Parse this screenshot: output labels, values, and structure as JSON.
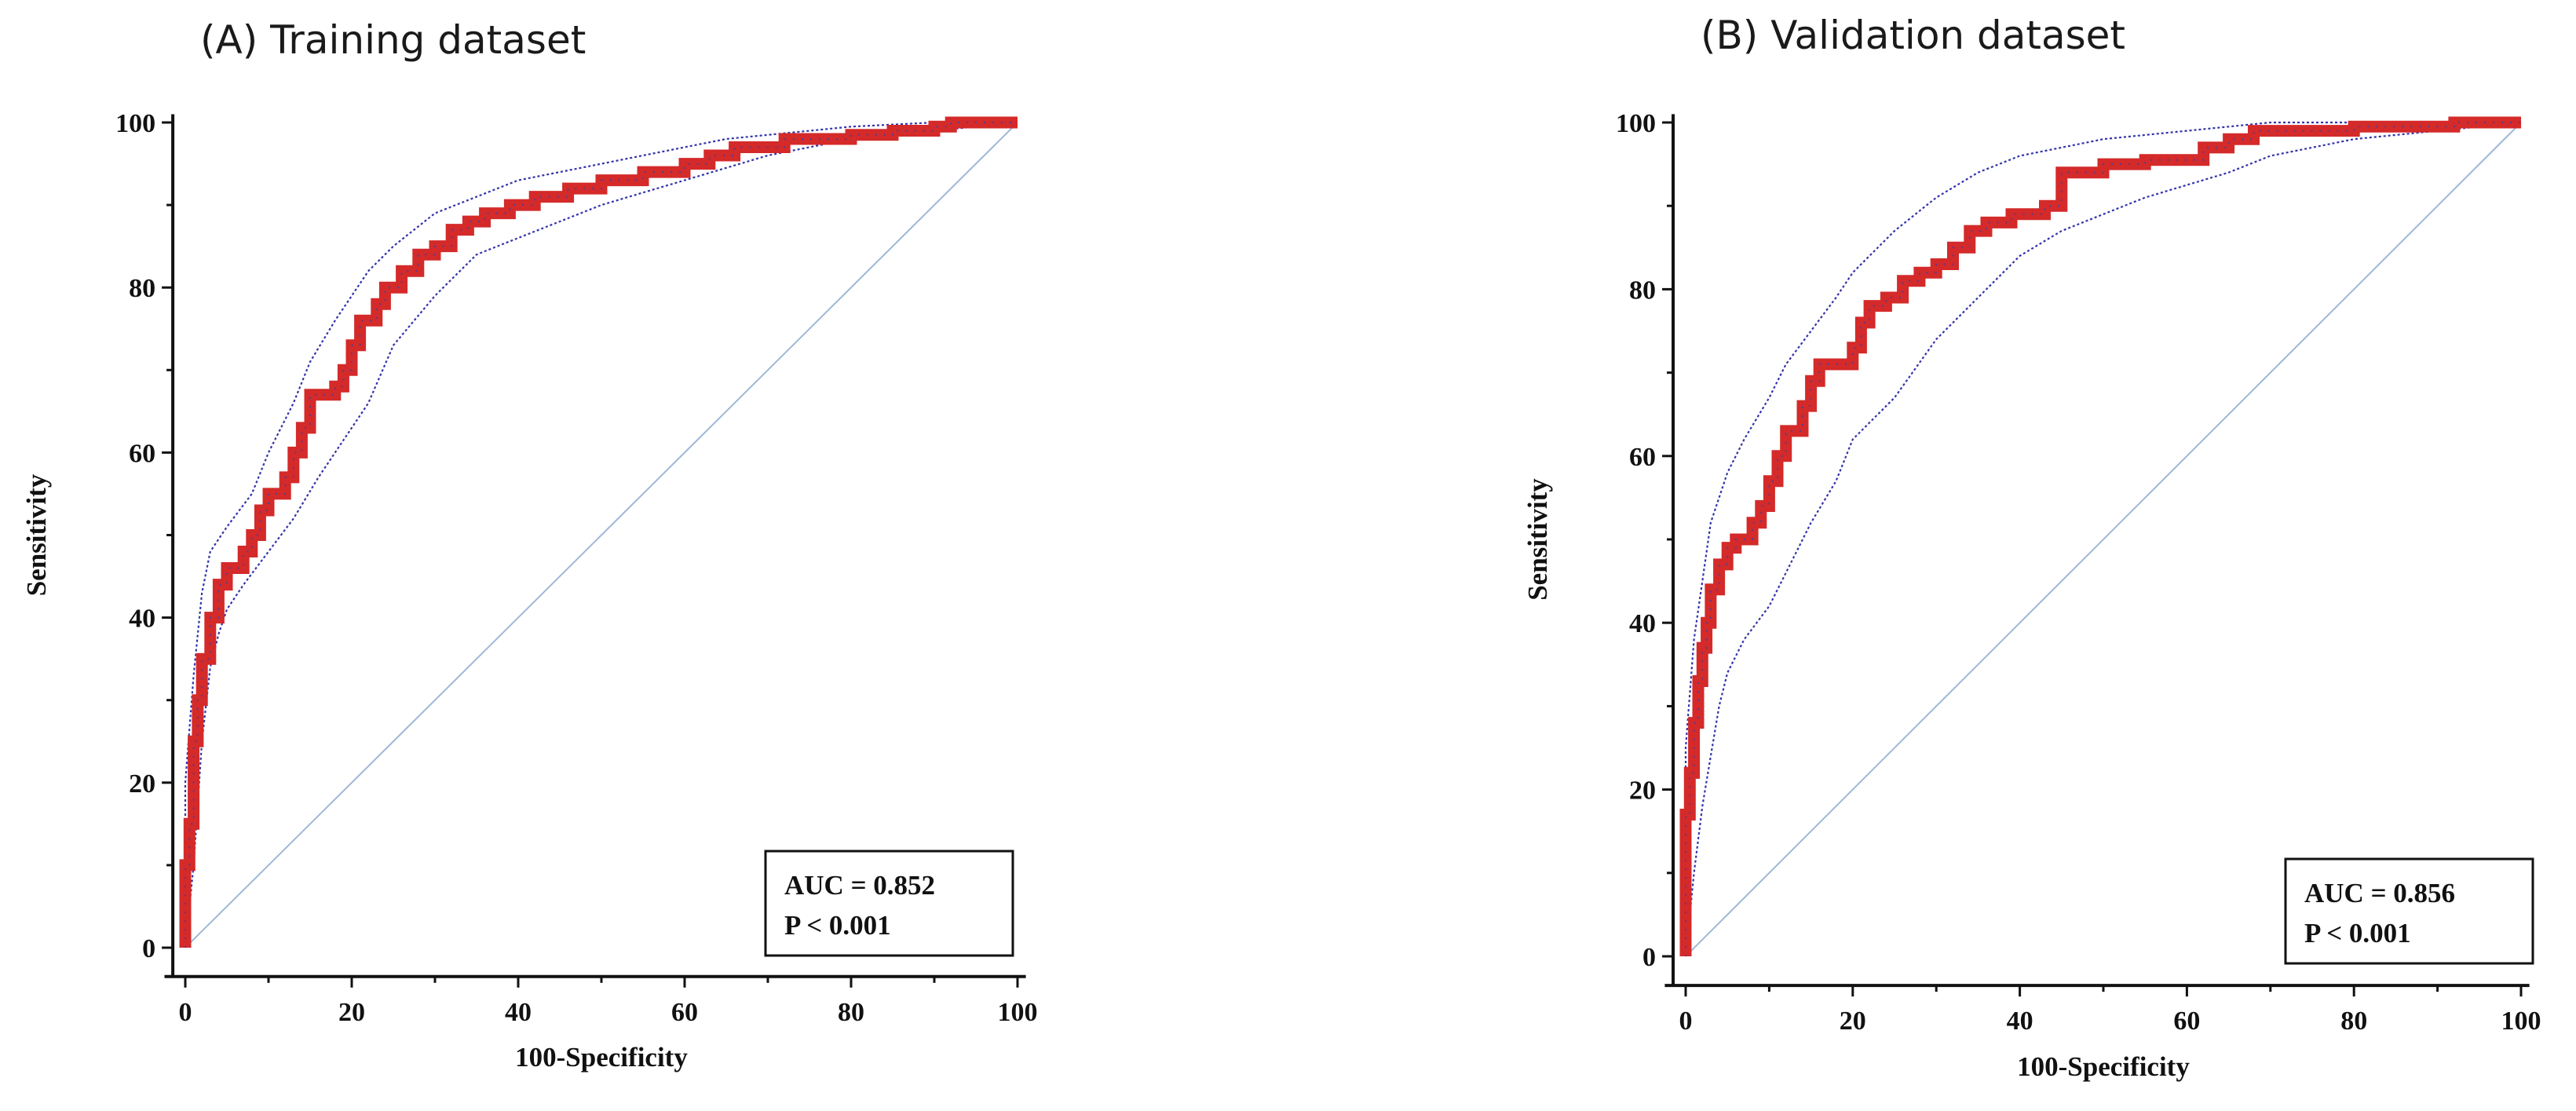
{
  "chart_data": [
    {
      "type": "line",
      "title": "(A) Training dataset",
      "xlabel": "100-Specificity",
      "ylabel": "Sensitivity",
      "xlim": [
        0,
        100
      ],
      "ylim": [
        0,
        100
      ],
      "xticks": [
        "0",
        "20",
        "40",
        "60",
        "80",
        "100"
      ],
      "yticks": [
        "0",
        "20",
        "40",
        "60",
        "80",
        "100"
      ],
      "grid": false,
      "annotation": {
        "auc": "AUC = 0.852",
        "p": "P < 0.001",
        "placement": "bottom-right"
      },
      "series": [
        {
          "name": "ROC curve",
          "style": "solid-markers",
          "color": "#d42a2a",
          "x": [
            0,
            0,
            0.5,
            0.5,
            1,
            1,
            1.5,
            1.5,
            2,
            2,
            3,
            3,
            4,
            4,
            5,
            5,
            7,
            7,
            8,
            8,
            9,
            9,
            10,
            10,
            12,
            12,
            13,
            13,
            14,
            14,
            15,
            15,
            18,
            18,
            19,
            19,
            20,
            20,
            21,
            21,
            23,
            23,
            24,
            24,
            26,
            26,
            28,
            28,
            30,
            30,
            32,
            32,
            34,
            34,
            36,
            36,
            39,
            39,
            42,
            42,
            46,
            46,
            50,
            50,
            55,
            55,
            60,
            60,
            63,
            63,
            66,
            66,
            72,
            72,
            80,
            80,
            85,
            85,
            90,
            90,
            92,
            92,
            100
          ],
          "y": [
            0,
            10,
            10,
            15,
            15,
            25,
            25,
            30,
            30,
            35,
            35,
            40,
            40,
            44,
            44,
            46,
            46,
            48,
            48,
            50,
            50,
            53,
            53,
            55,
            55,
            57,
            57,
            60,
            60,
            63,
            63,
            67,
            67,
            68,
            68,
            70,
            70,
            73,
            73,
            76,
            76,
            78,
            78,
            80,
            80,
            82,
            82,
            84,
            84,
            85,
            85,
            87,
            87,
            88,
            88,
            89,
            89,
            90,
            90,
            91,
            91,
            92,
            92,
            93,
            93,
            94,
            94,
            95,
            95,
            96,
            96,
            97,
            97,
            98,
            98,
            98.5,
            98.5,
            99,
            99,
            99.5,
            99.5,
            100,
            100
          ]
        },
        {
          "name": "95% CI upper",
          "style": "dotted",
          "color": "#3333aa",
          "x": [
            0,
            0,
            1,
            2,
            3,
            5,
            8,
            10,
            13,
            15,
            18,
            20,
            22,
            25,
            30,
            35,
            40,
            45,
            50,
            55,
            60,
            65,
            70,
            80,
            90,
            100
          ],
          "y": [
            0,
            20,
            33,
            43,
            48,
            51,
            55,
            60,
            66,
            71,
            76,
            79,
            82,
            85,
            89,
            91,
            93,
            94,
            95,
            96,
            97,
            98,
            98.5,
            99.5,
            100,
            100
          ]
        },
        {
          "name": "95% CI lower",
          "style": "dotted",
          "color": "#3333aa",
          "x": [
            0,
            1,
            2,
            3,
            4,
            5,
            7,
            10,
            13,
            16,
            20,
            22,
            25,
            30,
            35,
            40,
            45,
            50,
            55,
            60,
            65,
            70,
            75,
            80,
            90,
            100
          ],
          "y": [
            0,
            10,
            25,
            34,
            38,
            41,
            44,
            48,
            52,
            57,
            63,
            66,
            73,
            79,
            84,
            86,
            88,
            90,
            91.5,
            93,
            94.5,
            96,
            97,
            98,
            99,
            100
          ]
        },
        {
          "name": "Reference line",
          "style": "thin",
          "color": "#9fb8d8",
          "x": [
            0,
            100
          ],
          "y": [
            0,
            100
          ]
        }
      ]
    },
    {
      "type": "line",
      "title": "(B) Validation dataset",
      "xlabel": "100-Specificity",
      "ylabel": "Sensitivity",
      "xlim": [
        0,
        100
      ],
      "ylim": [
        0,
        100
      ],
      "xticks": [
        "0",
        "20",
        "40",
        "60",
        "80",
        "100"
      ],
      "yticks": [
        "0",
        "20",
        "40",
        "60",
        "80",
        "100"
      ],
      "grid": false,
      "annotation": {
        "auc": "AUC = 0.856",
        "p": "P < 0.001",
        "placement": "bottom-right"
      },
      "series": [
        {
          "name": "ROC curve",
          "style": "solid-markers",
          "color": "#d42a2a",
          "x": [
            0,
            0,
            0.5,
            0.5,
            1,
            1,
            1.5,
            1.5,
            2,
            2,
            2.5,
            2.5,
            3,
            3,
            4,
            4,
            5,
            5,
            6,
            6,
            8,
            8,
            9,
            9,
            10,
            10,
            11,
            11,
            12,
            12,
            14,
            14,
            15,
            15,
            16,
            16,
            20,
            20,
            21,
            21,
            22,
            22,
            24,
            24,
            26,
            26,
            28,
            28,
            30,
            30,
            32,
            32,
            34,
            34,
            36,
            36,
            39,
            39,
            43,
            43,
            45,
            45,
            50,
            50,
            55,
            55,
            62,
            62,
            65,
            65,
            68,
            68,
            80,
            80,
            92,
            92,
            100
          ],
          "y": [
            0,
            17,
            17,
            22,
            22,
            28,
            28,
            33,
            33,
            37,
            37,
            40,
            40,
            44,
            44,
            47,
            47,
            49,
            49,
            50,
            50,
            52,
            52,
            54,
            54,
            57,
            57,
            60,
            60,
            63,
            63,
            66,
            66,
            69,
            69,
            71,
            71,
            73,
            73,
            76,
            76,
            78,
            78,
            79,
            79,
            81,
            81,
            82,
            82,
            83,
            83,
            85,
            85,
            87,
            87,
            88,
            88,
            89,
            89,
            90,
            90,
            94,
            94,
            95,
            95,
            95.5,
            95.5,
            97,
            97,
            98,
            98,
            99,
            99,
            99.5,
            99.5,
            100,
            100
          ]
        },
        {
          "name": "95% CI upper",
          "style": "dotted",
          "color": "#3333aa",
          "x": [
            0,
            0,
            1,
            2,
            3,
            5,
            7,
            10,
            12,
            15,
            18,
            20,
            25,
            30,
            35,
            40,
            45,
            50,
            55,
            60,
            65,
            70,
            80,
            90,
            100
          ],
          "y": [
            0,
            25,
            38,
            45,
            52,
            58,
            62,
            67,
            71,
            75,
            79,
            82,
            87,
            91,
            94,
            96,
            97,
            98,
            98.5,
            99,
            99.5,
            100,
            100,
            100,
            100
          ]
        },
        {
          "name": "95% CI lower",
          "style": "dotted",
          "color": "#3333aa",
          "x": [
            0,
            1,
            2,
            3,
            4,
            5,
            7,
            10,
            12,
            15,
            18,
            20,
            25,
            30,
            35,
            40,
            45,
            50,
            55,
            60,
            65,
            70,
            75,
            80,
            90,
            100
          ],
          "y": [
            0,
            10,
            18,
            24,
            30,
            34,
            38,
            42,
            46,
            52,
            57,
            62,
            67,
            74,
            79,
            84,
            87,
            89,
            91,
            92.5,
            94,
            96,
            97,
            98,
            99,
            100
          ]
        },
        {
          "name": "Reference line",
          "style": "thin",
          "color": "#9fb8d8",
          "x": [
            0,
            100
          ],
          "y": [
            0,
            100
          ]
        }
      ]
    }
  ]
}
